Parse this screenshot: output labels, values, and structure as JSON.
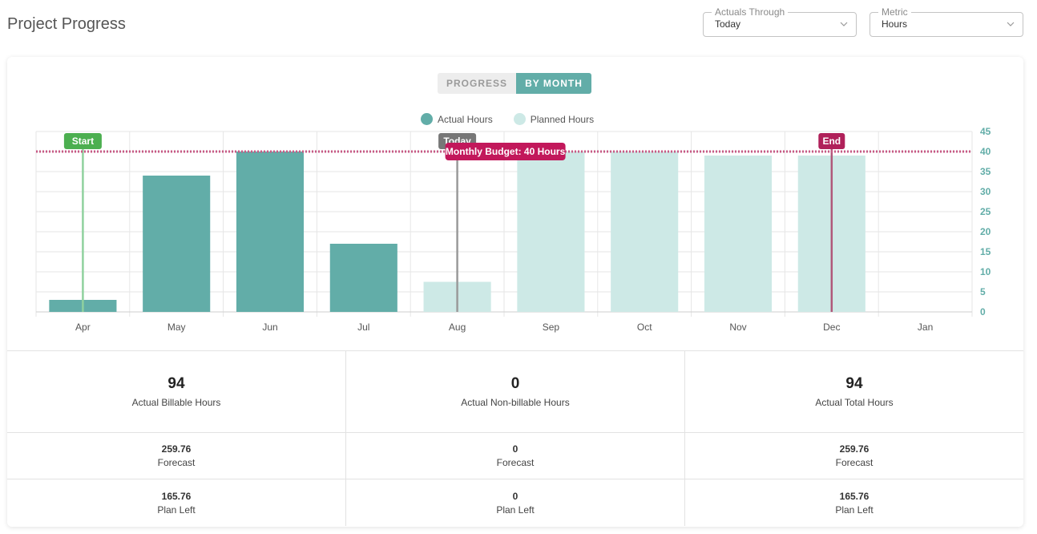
{
  "page_title": "Project Progress",
  "filters": {
    "actuals_through": {
      "label": "Actuals Through",
      "value": "Today"
    },
    "metric": {
      "label": "Metric",
      "value": "Hours"
    }
  },
  "view_toggle": {
    "options": [
      "PROGRESS",
      "BY MONTH"
    ],
    "selected": "BY MONTH"
  },
  "legend": [
    "Actual Hours",
    "Planned Hours"
  ],
  "colors": {
    "actual": "#62ada8",
    "planned": "#cde9e6",
    "budget": "#c2185b",
    "start": "#4caf50",
    "today": "#777777",
    "end": "#b0215a"
  },
  "chart_data": {
    "type": "bar",
    "categories": [
      "Apr",
      "May",
      "Jun",
      "Jul",
      "Aug",
      "Sep",
      "Oct",
      "Nov",
      "Dec",
      "Jan"
    ],
    "series": [
      {
        "name": "Actual Hours",
        "values": [
          3,
          34,
          40,
          17,
          null,
          null,
          null,
          null,
          null,
          null
        ]
      },
      {
        "name": "Planned Hours",
        "values": [
          null,
          null,
          null,
          null,
          7.5,
          40,
          40,
          39,
          39,
          null
        ]
      }
    ],
    "ylim": [
      0,
      45
    ],
    "yticks": [
      0,
      5,
      10,
      15,
      20,
      25,
      30,
      35,
      40,
      45
    ],
    "y_axis_position": "right",
    "grid": true,
    "reference_line": {
      "value": 40,
      "label": "Monthly Budget: 40 Hours"
    },
    "markers": [
      {
        "label": "Start",
        "category": "Apr"
      },
      {
        "label": "Today",
        "category": "Aug"
      },
      {
        "label": "End",
        "category": "Dec"
      }
    ]
  },
  "summary": [
    {
      "value": "94",
      "label": "Actual Billable Hours"
    },
    {
      "value": "0",
      "label": "Actual Non-billable Hours"
    },
    {
      "value": "94",
      "label": "Actual Total Hours"
    }
  ],
  "forecast": [
    {
      "value": "259.76",
      "label": "Forecast"
    },
    {
      "value": "0",
      "label": "Forecast"
    },
    {
      "value": "259.76",
      "label": "Forecast"
    }
  ],
  "plan_left": [
    {
      "value": "165.76",
      "label": "Plan Left"
    },
    {
      "value": "0",
      "label": "Plan Left"
    },
    {
      "value": "165.76",
      "label": "Plan Left"
    }
  ]
}
